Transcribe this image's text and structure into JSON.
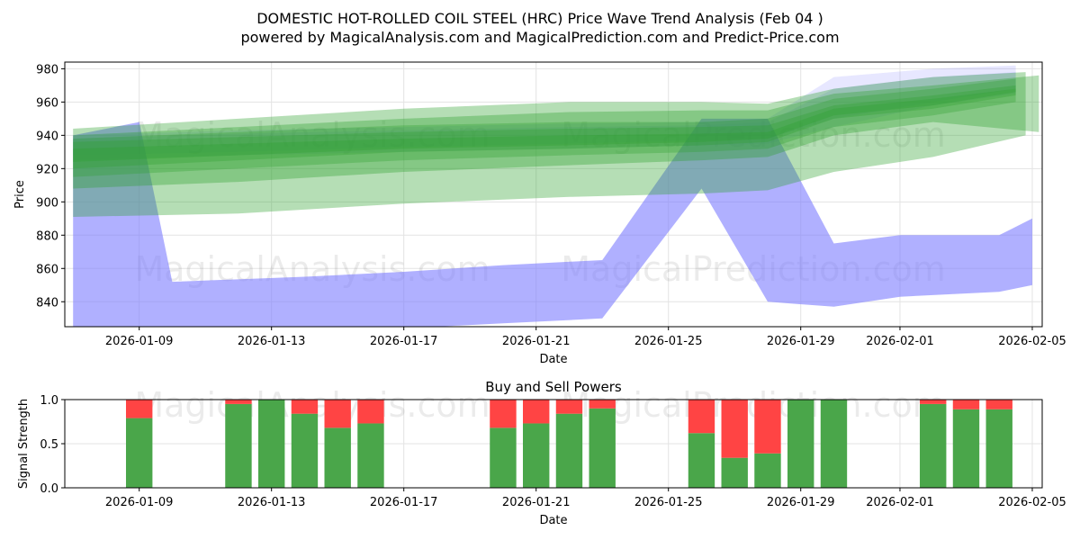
{
  "title_line1": "DOMESTIC HOT-ROLLED COIL STEEL (HRC) Price Wave Trend Analysis (Feb 04 )",
  "title_line2": "powered by MagicalAnalysis.com and MagicalPrediction.com and Predict-Price.com",
  "watermarks": [
    "MagicalAnalysis.com",
    "MagicalPrediction.com"
  ],
  "colors": {
    "green": "#2ca02c",
    "blue": "#7b7bff",
    "buy": "#4aa64a",
    "sell": "#ff4444"
  },
  "chart_data": [
    {
      "type": "area",
      "title": "",
      "xlabel": "Date",
      "ylabel": "Price",
      "x_start": "2026-01-07",
      "x_range": [
        -0.25,
        29.3
      ],
      "ylim": [
        825,
        984
      ],
      "yticks": [
        840,
        860,
        880,
        900,
        920,
        940,
        960,
        980
      ],
      "xtick_labels": [
        "2026-01-09",
        "2026-01-13",
        "2026-01-17",
        "2026-01-21",
        "2026-01-25",
        "2026-01-29",
        "2026-02-01",
        "2026-02-05"
      ],
      "xtick_days": [
        2,
        6,
        10,
        14,
        18,
        22,
        25,
        29
      ],
      "grid": true,
      "series": [
        {
          "name": "blue-wave",
          "x": [
            0,
            2,
            3,
            7,
            10,
            13,
            16,
            19,
            21,
            23,
            25,
            28,
            29
          ],
          "low": [
            812,
            812,
            820,
            823,
            824,
            827,
            830,
            908,
            840,
            837,
            843,
            846,
            850
          ],
          "high": [
            940,
            948,
            852,
            855,
            858,
            862,
            865,
            950,
            950,
            875,
            880,
            880,
            890
          ]
        },
        {
          "name": "blue-band-1",
          "x": [
            0,
            5,
            10,
            15,
            19,
            21,
            23,
            26,
            28.5
          ],
          "low": [
            925,
            928,
            930,
            932,
            934,
            935,
            945,
            958,
            965
          ],
          "high": [
            940,
            943,
            945,
            947,
            948,
            950,
            975,
            980,
            982
          ]
        },
        {
          "name": "blue-band-2",
          "x": [
            0,
            5,
            10,
            15,
            19,
            21,
            23,
            26,
            28.5
          ],
          "low": [
            928,
            930,
            933,
            935,
            937,
            938,
            950,
            960,
            968
          ],
          "high": [
            938,
            941,
            943,
            945,
            946,
            948,
            968,
            975,
            978
          ]
        },
        {
          "name": "green-band-outer",
          "x": [
            0,
            5,
            10,
            15,
            19,
            21,
            23,
            26,
            28.8
          ],
          "low": [
            891,
            893,
            899,
            903,
            905,
            907,
            918,
            927,
            940
          ],
          "high": [
            944,
            950,
            956,
            960,
            960,
            959,
            968,
            975,
            978
          ]
        },
        {
          "name": "green-band-2",
          "x": [
            0,
            5,
            10,
            15,
            19,
            21,
            23,
            26,
            29.2
          ],
          "low": [
            908,
            912,
            918,
            922,
            925,
            927,
            940,
            948,
            942
          ],
          "high": [
            940,
            945,
            950,
            954,
            955,
            955,
            965,
            970,
            976
          ]
        },
        {
          "name": "green-band-3",
          "x": [
            0,
            5,
            10,
            15,
            19,
            21,
            23,
            26,
            28.5
          ],
          "low": [
            915,
            920,
            925,
            928,
            930,
            932,
            945,
            952,
            960
          ],
          "high": [
            938,
            942,
            946,
            948,
            948,
            950,
            962,
            968,
            974
          ]
        },
        {
          "name": "green-band-4",
          "x": [
            0,
            5,
            10,
            15,
            19,
            21,
            23,
            26,
            28.5
          ],
          "low": [
            920,
            925,
            930,
            932,
            934,
            936,
            950,
            956,
            964
          ],
          "high": [
            936,
            939,
            942,
            944,
            945,
            946,
            958,
            964,
            970
          ]
        },
        {
          "name": "green-band-5",
          "x": [
            0,
            5,
            10,
            15,
            19,
            21,
            23,
            26,
            28.5
          ],
          "low": [
            924,
            928,
            932,
            934,
            936,
            938,
            952,
            958,
            966
          ],
          "high": [
            932,
            935,
            938,
            940,
            941,
            942,
            956,
            962,
            968
          ]
        }
      ]
    },
    {
      "type": "bar",
      "title": "Buy and Sell Powers",
      "xlabel": "Date",
      "ylabel": "Signal Strength",
      "ylim": [
        0,
        1
      ],
      "yticks": [
        0,
        0.5,
        1
      ],
      "ytick_labels": [
        "0.0",
        "0.5",
        "1.0"
      ],
      "x_start": "2026-01-07",
      "x_range": [
        -0.25,
        29.3
      ],
      "xtick_labels": [
        "2026-01-09",
        "2026-01-13",
        "2026-01-17",
        "2026-01-21",
        "2026-01-25",
        "2026-01-29",
        "2026-02-01",
        "2026-02-05"
      ],
      "xtick_days": [
        2,
        6,
        10,
        14,
        18,
        22,
        25,
        29
      ],
      "grid": true,
      "bar_days": [
        2,
        5,
        6,
        7,
        8,
        9,
        13,
        14,
        15,
        16,
        19,
        20,
        21,
        22,
        23,
        26,
        27,
        28
      ],
      "series": [
        {
          "name": "Buy",
          "values": [
            0.79,
            0.95,
            1.0,
            0.84,
            0.68,
            0.73,
            0.68,
            0.73,
            0.84,
            0.9,
            0.62,
            0.34,
            0.39,
            1.0,
            1.0,
            0.95,
            0.89,
            0.89
          ]
        },
        {
          "name": "Sell",
          "values": [
            0.21,
            0.05,
            0.0,
            0.16,
            0.32,
            0.27,
            0.32,
            0.27,
            0.16,
            0.1,
            0.38,
            0.66,
            0.61,
            0.0,
            0.0,
            0.05,
            0.11,
            0.11
          ]
        }
      ]
    }
  ]
}
